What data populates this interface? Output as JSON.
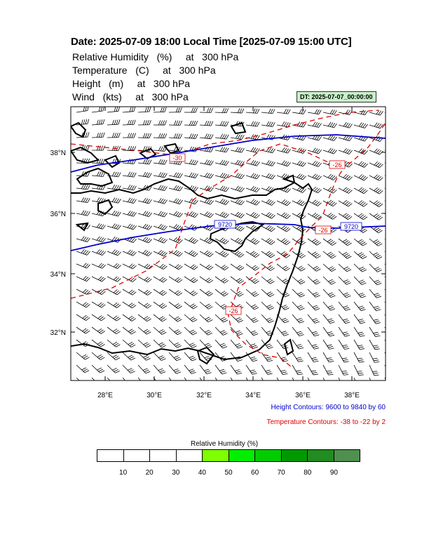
{
  "header": {
    "title": "Date: 2025-07-09  18:00 Local Time [2025-07-09  15:00 UTC]",
    "variables": [
      "Relative Humidity   (%)     at   300 hPa",
      "Temperature   (C)     at   300 hPa",
      "Height   (m)     at   300 hPa",
      "Wind   (kts)     at   300 hPa"
    ],
    "dt_badge": "DT: 2025-07-07_00:00:00"
  },
  "map": {
    "lon_labels": [
      "28°E",
      "30°E",
      "32°E",
      "34°E",
      "36°E",
      "38°E"
    ],
    "lat_labels": [
      "38°N",
      "36°N",
      "34°N",
      "32°N"
    ],
    "height_contour_labels": [
      "9720",
      "9720"
    ],
    "temp_contour_labels": [
      "-30",
      "-26",
      "-26",
      "-26"
    ],
    "colors": {
      "height_contour": "#0000cc",
      "temp_contour": "#dd0000",
      "coastline": "#000000",
      "barbs": "#000000"
    }
  },
  "notes": {
    "height": "Height Contours: 9600 to 9840 by 60",
    "temperature": "Temperature Contours: -38 to -22 by 2"
  },
  "colorbar": {
    "title": "Relative Humidity  (%)",
    "labels": [
      "10",
      "20",
      "30",
      "40",
      "50",
      "60",
      "70",
      "80",
      "90"
    ],
    "colors": [
      "#ffffff",
      "#ffffff",
      "#ffffff",
      "#ffffff",
      "#80ff00",
      "#00ee00",
      "#00cc00",
      "#009900",
      "#228b22",
      "#4f8f4f"
    ]
  }
}
